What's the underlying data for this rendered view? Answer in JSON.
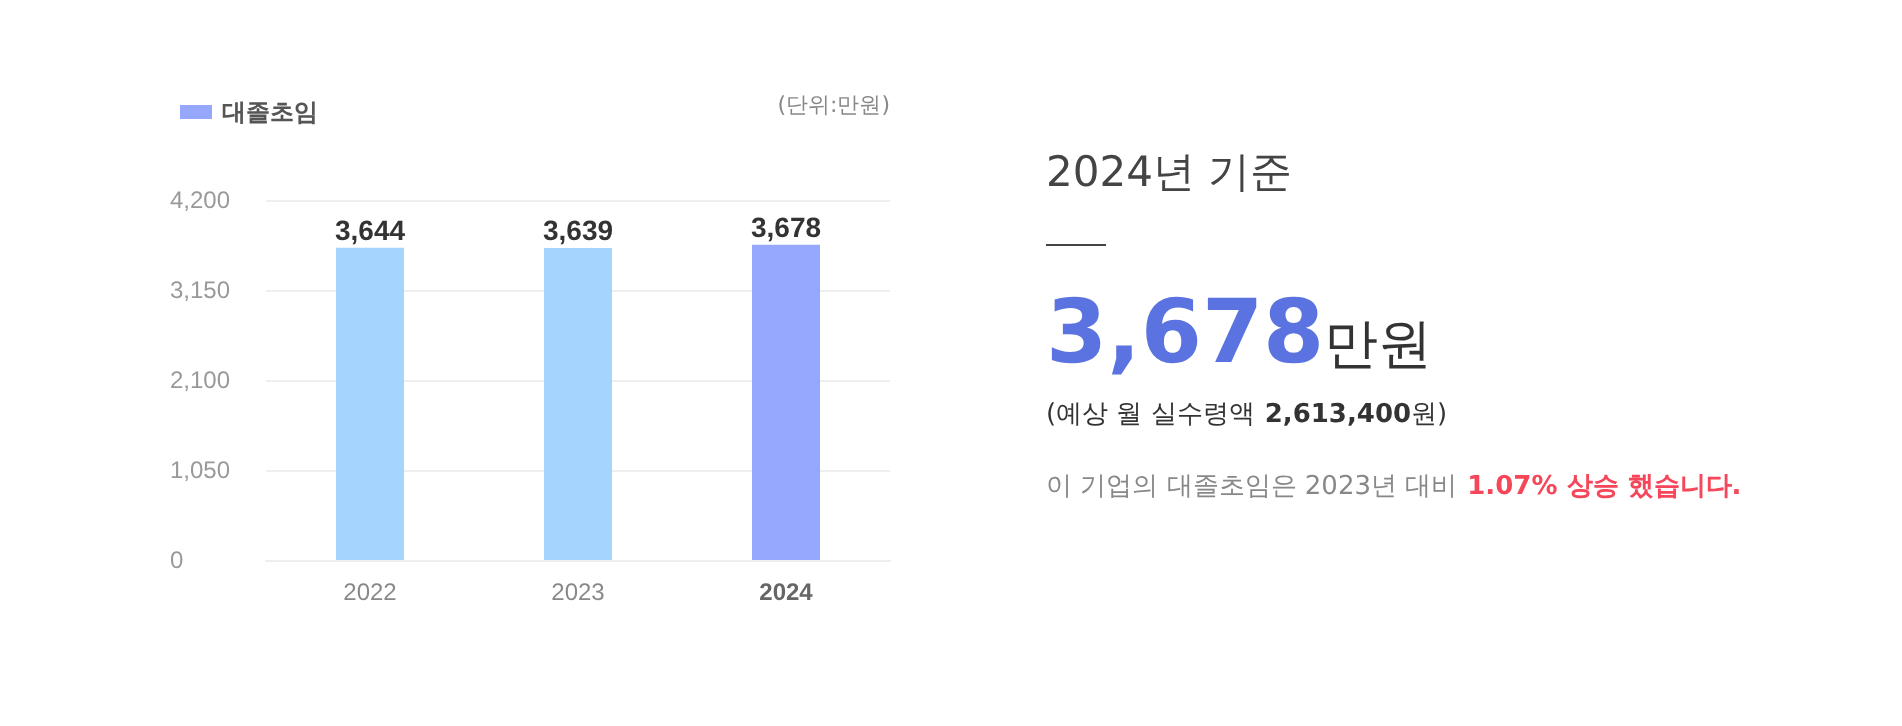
{
  "chart_data": {
    "type": "bar",
    "categories": [
      "2022",
      "2023",
      "2024"
    ],
    "series": [
      {
        "name": "대졸초임",
        "color": "#95a8fd",
        "values": [
          3644,
          3639,
          3678
        ],
        "colors": [
          "#a5d4fe",
          "#a5d4fe",
          "#95a8fd"
        ],
        "value_labels": [
          "3,644",
          "3,639",
          "3,678"
        ]
      }
    ],
    "ylim": [
      0,
      4200
    ],
    "yticks": [
      {
        "value": 0,
        "label": "0"
      },
      {
        "value": 1050,
        "label": "1,050"
      },
      {
        "value": 2100,
        "label": "2,100"
      },
      {
        "value": 3150,
        "label": "3,150"
      },
      {
        "value": 4200,
        "label": "4,200"
      }
    ],
    "grid": "y",
    "legend": "top left",
    "annotations": [
      "(단위:만원)",
      "2024년 기준",
      "3,678",
      "만원",
      "(예상 월 실수령액",
      "2,613,400",
      "원)",
      "이 기업의 대졸초임은 2023년 대비",
      "1.07% 상승 했습니다."
    ]
  }
}
